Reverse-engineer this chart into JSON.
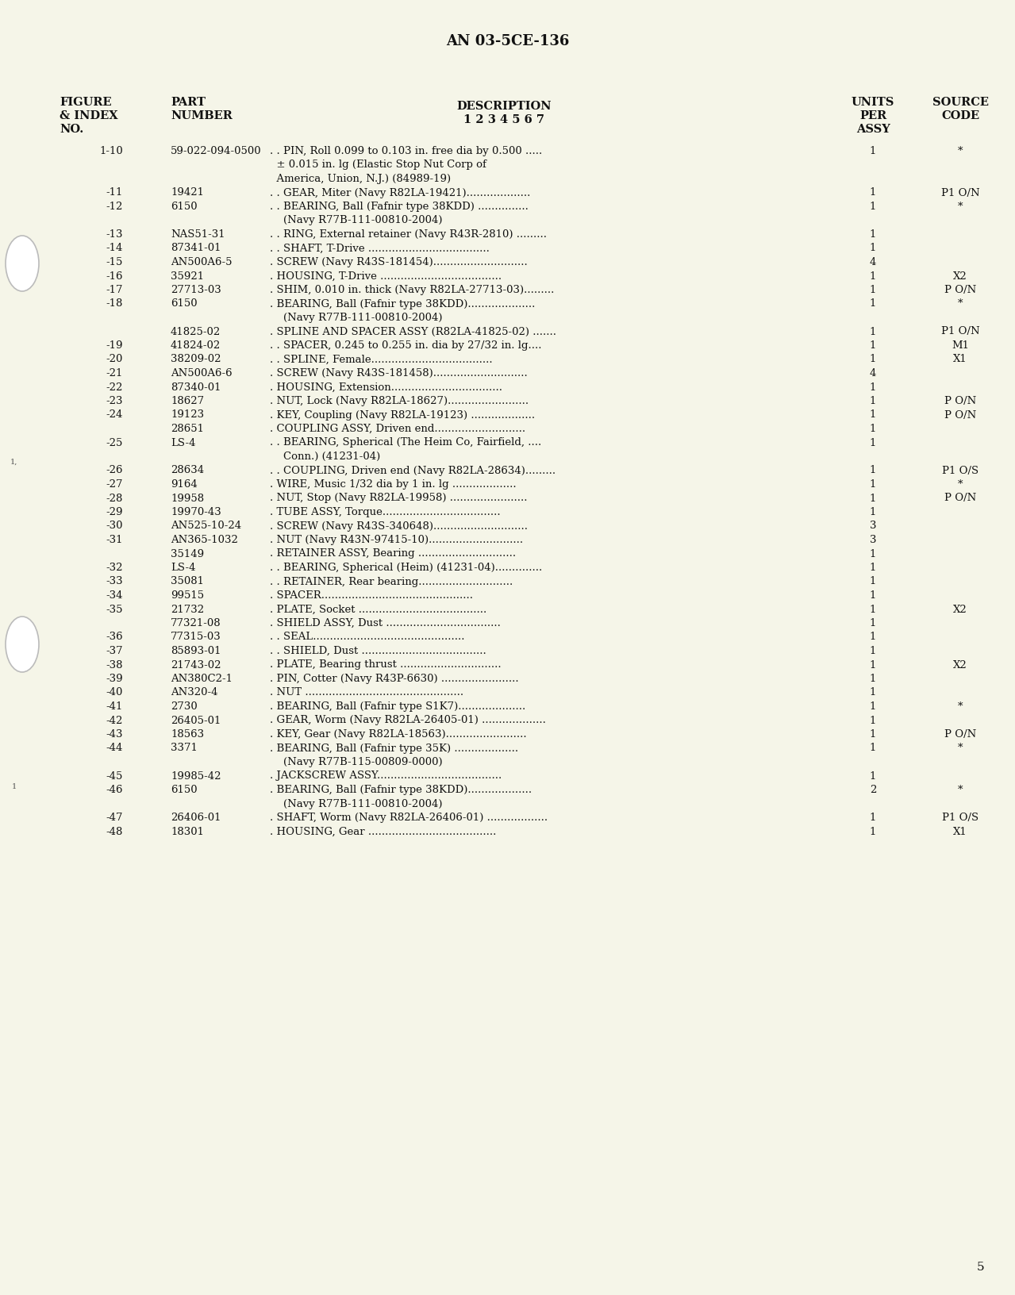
{
  "bg_color": "#F5F5E8",
  "page_color": "#F5F5E8",
  "header_title": "AN 03-5CE-136",
  "page_number": "5",
  "rows": [
    {
      "fig": "1-10",
      "part": "59-022-094-0500",
      "desc": ". . PIN, Roll 0.099 to 0.103 in. free dia by 0.500 .....",
      "desc2": "  ± 0.015 in. lg (Elastic Stop Nut Corp of",
      "desc3": "  America, Union, N.J.) (84989-19)",
      "units": "1",
      "source": "*"
    },
    {
      "fig": "-11",
      "part": "19421",
      "desc": ". . GEAR, Miter (Navy R82LA-19421)...................",
      "desc2": "",
      "desc3": "",
      "units": "1",
      "source": "P1 O/N"
    },
    {
      "fig": "-12",
      "part": "6150",
      "desc": ". . BEARING, Ball (Fafnir type 38KDD) ...............",
      "desc2": "    (Navy R77B-111-00810-2004)",
      "desc3": "",
      "units": "1",
      "source": "*"
    },
    {
      "fig": "-13",
      "part": "NAS51-31",
      "desc": ". . RING, External retainer (Navy R43R-2810) .........",
      "desc2": "",
      "desc3": "",
      "units": "1",
      "source": ""
    },
    {
      "fig": "-14",
      "part": "87341-01",
      "desc": ". . SHAFT, T-Drive ....................................",
      "desc2": "",
      "desc3": "",
      "units": "1",
      "source": ""
    },
    {
      "fig": "-15",
      "part": "AN500A6-5",
      "desc": ". SCREW (Navy R43S-181454)............................",
      "desc2": "",
      "desc3": "",
      "units": "4",
      "source": ""
    },
    {
      "fig": "-16",
      "part": "35921",
      "desc": ". HOUSING, T-Drive ....................................",
      "desc2": "",
      "desc3": "",
      "units": "1",
      "source": "X2"
    },
    {
      "fig": "-17",
      "part": "27713-03",
      "desc": ". SHIM, 0.010 in. thick (Navy R82LA-27713-03).........",
      "desc2": "",
      "desc3": "",
      "units": "1",
      "source": "P O/N"
    },
    {
      "fig": "-18",
      "part": "6150",
      "desc": ". BEARING, Ball (Fafnir type 38KDD)....................",
      "desc2": "    (Navy R77B-111-00810-2004)",
      "desc3": "",
      "units": "1",
      "source": "*"
    },
    {
      "fig": "",
      "part": "41825-02",
      "desc": ". SPLINE AND SPACER ASSY (R82LA-41825-02) .......",
      "desc2": "",
      "desc3": "",
      "units": "1",
      "source": "P1 O/N"
    },
    {
      "fig": "-19",
      "part": "41824-02",
      "desc": ". . SPACER, 0.245 to 0.255 in. dia by 27/32 in. lg....",
      "desc2": "",
      "desc3": "",
      "units": "1",
      "source": "M1"
    },
    {
      "fig": "-20",
      "part": "38209-02",
      "desc": ". . SPLINE, Female....................................",
      "desc2": "",
      "desc3": "",
      "units": "1",
      "source": "X1"
    },
    {
      "fig": "-21",
      "part": "AN500A6-6",
      "desc": ". SCREW (Navy R43S-181458)............................",
      "desc2": "",
      "desc3": "",
      "units": "4",
      "source": ""
    },
    {
      "fig": "-22",
      "part": "87340-01",
      "desc": ". HOUSING, Extension.................................",
      "desc2": "",
      "desc3": "",
      "units": "1",
      "source": ""
    },
    {
      "fig": "-23",
      "part": "18627",
      "desc": ". NUT, Lock (Navy R82LA-18627)........................",
      "desc2": "",
      "desc3": "",
      "units": "1",
      "source": "P O/N"
    },
    {
      "fig": "-24",
      "part": "19123",
      "desc": ". KEY, Coupling (Navy R82LA-19123) ...................",
      "desc2": "",
      "desc3": "",
      "units": "1",
      "source": "P O/N"
    },
    {
      "fig": "",
      "part": "28651",
      "desc": ". COUPLING ASSY, Driven end...........................",
      "desc2": "",
      "desc3": "",
      "units": "1",
      "source": ""
    },
    {
      "fig": "-25",
      "part": "LS-4",
      "desc": ". . BEARING, Spherical (The Heim Co, Fairfield, ....",
      "desc2": "    Conn.) (41231-04)",
      "desc3": "",
      "units": "1",
      "source": ""
    },
    {
      "fig": "-26",
      "part": "28634",
      "desc": ". . COUPLING, Driven end (Navy R82LA-28634).........",
      "desc2": "",
      "desc3": "",
      "units": "1",
      "source": "P1 O/S"
    },
    {
      "fig": "-27",
      "part": "9164",
      "desc": ". WIRE, Music 1/32 dia by 1 in. lg ...................",
      "desc2": "",
      "desc3": "",
      "units": "1",
      "source": "*"
    },
    {
      "fig": "-28",
      "part": "19958",
      "desc": ". NUT, Stop (Navy R82LA-19958) .......................",
      "desc2": "",
      "desc3": "",
      "units": "1",
      "source": "P O/N"
    },
    {
      "fig": "-29",
      "part": "19970-43",
      "desc": ". TUBE ASSY, Torque...................................",
      "desc2": "",
      "desc3": "",
      "units": "1",
      "source": ""
    },
    {
      "fig": "-30",
      "part": "AN525-10-24",
      "desc": ". SCREW (Navy R43S-340648)............................",
      "desc2": "",
      "desc3": "",
      "units": "3",
      "source": ""
    },
    {
      "fig": "-31",
      "part": "AN365-1032",
      "desc": ". NUT (Navy R43N-97415-10)............................",
      "desc2": "",
      "desc3": "",
      "units": "3",
      "source": ""
    },
    {
      "fig": "",
      "part": "35149",
      "desc": ". RETAINER ASSY, Bearing .............................",
      "desc2": "",
      "desc3": "",
      "units": "1",
      "source": ""
    },
    {
      "fig": "-32",
      "part": "LS-4",
      "desc": ". . BEARING, Spherical (Heim) (41231-04)..............",
      "desc2": "",
      "desc3": "",
      "units": "1",
      "source": ""
    },
    {
      "fig": "-33",
      "part": "35081",
      "desc": ". . RETAINER, Rear bearing............................",
      "desc2": "",
      "desc3": "",
      "units": "1",
      "source": ""
    },
    {
      "fig": "-34",
      "part": "99515",
      "desc": ". SPACER.............................................",
      "desc2": "",
      "desc3": "",
      "units": "1",
      "source": ""
    },
    {
      "fig": "-35",
      "part": "21732",
      "desc": ". PLATE, Socket ......................................",
      "desc2": "",
      "desc3": "",
      "units": "1",
      "source": "X2"
    },
    {
      "fig": "",
      "part": "77321-08",
      "desc": ". SHIELD ASSY, Dust ..................................",
      "desc2": "",
      "desc3": "",
      "units": "1",
      "source": ""
    },
    {
      "fig": "-36",
      "part": "77315-03",
      "desc": ". . SEAL.............................................",
      "desc2": "",
      "desc3": "",
      "units": "1",
      "source": ""
    },
    {
      "fig": "-37",
      "part": "85893-01",
      "desc": ". . SHIELD, Dust .....................................",
      "desc2": "",
      "desc3": "",
      "units": "1",
      "source": ""
    },
    {
      "fig": "-38",
      "part": "21743-02",
      "desc": ". PLATE, Bearing thrust ..............................",
      "desc2": "",
      "desc3": "",
      "units": "1",
      "source": "X2"
    },
    {
      "fig": "-39",
      "part": "AN380C2-1",
      "desc": ". PIN, Cotter (Navy R43P-6630) .......................",
      "desc2": "",
      "desc3": "",
      "units": "1",
      "source": ""
    },
    {
      "fig": "-40",
      "part": "AN320-4",
      "desc": ". NUT ...............................................",
      "desc2": "",
      "desc3": "",
      "units": "1",
      "source": ""
    },
    {
      "fig": "-41",
      "part": "2730",
      "desc": ". BEARING, Ball (Fafnir type S1K7)....................",
      "desc2": "",
      "desc3": "",
      "units": "1",
      "source": "*"
    },
    {
      "fig": "-42",
      "part": "26405-01",
      "desc": ". GEAR, Worm (Navy R82LA-26405-01) ...................",
      "desc2": "",
      "desc3": "",
      "units": "1",
      "source": ""
    },
    {
      "fig": "-43",
      "part": "18563",
      "desc": ". KEY, Gear (Navy R82LA-18563)........................",
      "desc2": "",
      "desc3": "",
      "units": "1",
      "source": "P O/N"
    },
    {
      "fig": "-44",
      "part": "3371",
      "desc": ". BEARING, Ball (Fafnir type 35K) ...................",
      "desc2": "    (Navy R77B-115-00809-0000)",
      "desc3": "",
      "units": "1",
      "source": "*"
    },
    {
      "fig": "-45",
      "part": "19985-42",
      "desc": ". JACKSCREW ASSY.....................................",
      "desc2": "",
      "desc3": "",
      "units": "1",
      "source": ""
    },
    {
      "fig": "-46",
      "part": "6150",
      "desc": ". BEARING, Ball (Fafnir type 38KDD)...................",
      "desc2": "    (Navy R77B-111-00810-2004)",
      "desc3": "",
      "units": "2",
      "source": "*"
    },
    {
      "fig": "-47",
      "part": "26406-01",
      "desc": ". SHAFT, Worm (Navy R82LA-26406-01) ..................",
      "desc2": "",
      "desc3": "",
      "units": "1",
      "source": "P1 O/S"
    },
    {
      "fig": "-48",
      "part": "18301",
      "desc": ". HOUSING, Gear ......................................",
      "desc2": "",
      "desc3": "",
      "units": "1",
      "source": "X1"
    }
  ]
}
